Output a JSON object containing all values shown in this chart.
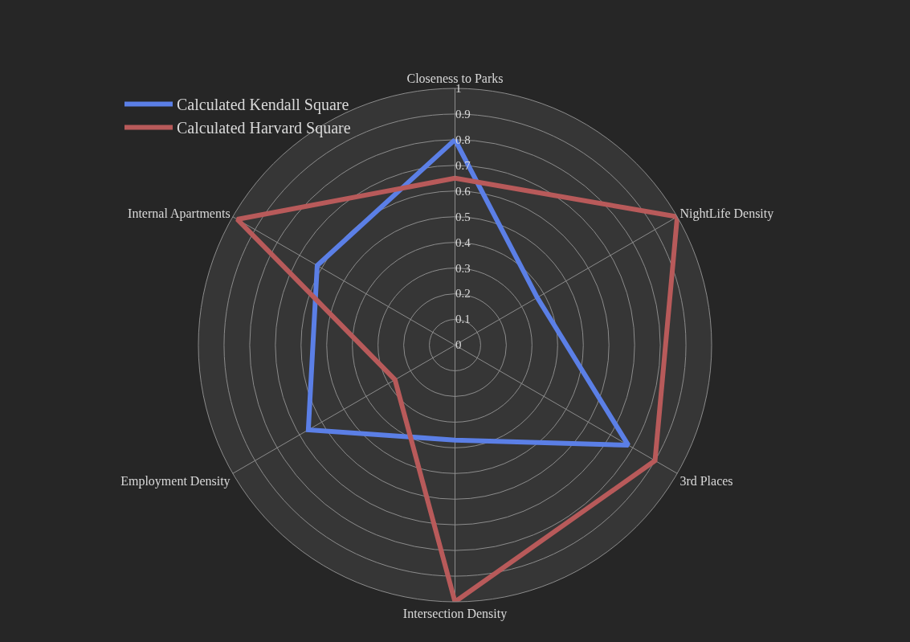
{
  "chart_data": {
    "type": "radar",
    "categories": [
      "Closeness to Parks",
      "NightLife Density",
      "3rd Places",
      "Intersection Density",
      "Employment Density",
      "Internal Apartments"
    ],
    "series": [
      {
        "name": "Calculated Kendall Square",
        "color": "#5b7fe6",
        "values": [
          0.8,
          0.37,
          0.78,
          0.37,
          0.66,
          0.62
        ]
      },
      {
        "name": "Calculated Harvard Square",
        "color": "#b85a5a",
        "values": [
          0.65,
          1.0,
          0.9,
          1.0,
          0.27,
          0.98
        ]
      }
    ],
    "ylim": [
      0,
      1
    ],
    "yticks": [
      0,
      0.1,
      0.2,
      0.3,
      0.4,
      0.5,
      0.6,
      0.7,
      0.8,
      0.9,
      1
    ],
    "grid": true,
    "legend": "top left",
    "marker": "none",
    "line_style": "solid"
  }
}
